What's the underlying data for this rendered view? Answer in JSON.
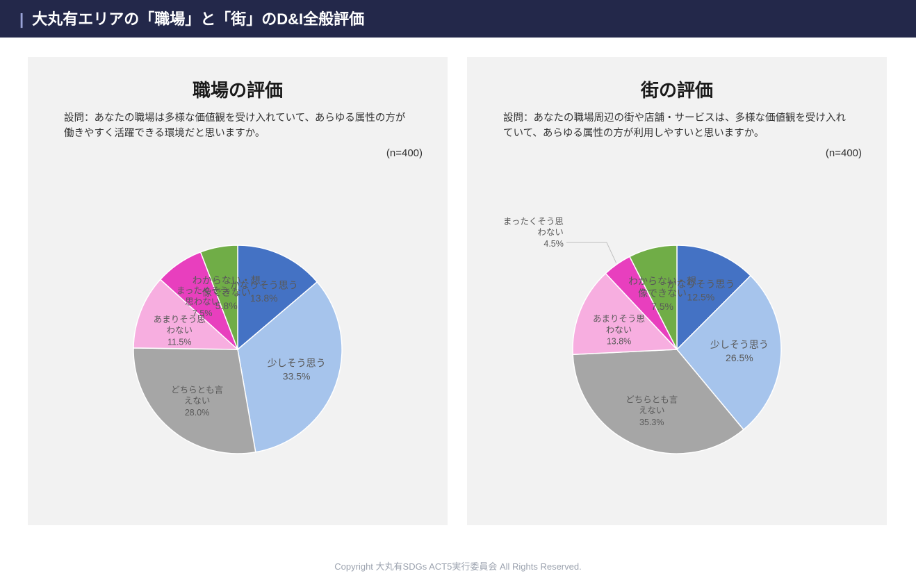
{
  "page": {
    "title": "大丸有エリアの「職場」と「街」のD&I全般評価",
    "footer": "Copyright 大丸有SDGs ACT5実行委員会 All Rights Reserved.",
    "titlebar_bg": "#23284a",
    "panel_bg": "#f2f2f2",
    "page_bg": "#ffffff"
  },
  "charts": [
    {
      "title": "職場の評価",
      "question": "設問：あなたの職場は多様な価値観を受け入れていて、あらゆる属性の方が働きやすく活躍できる環境だと思いますか。",
      "n_label": "(n=400)",
      "type": "pie",
      "title_fontsize": 26,
      "question_fontsize": 14.5,
      "label_fontsize": 14,
      "start_angle_deg": 0,
      "slices": [
        {
          "label": "かなりそう思う",
          "value": 13.8,
          "pct_label": "13.8%",
          "color": "#4472c4",
          "label_small": false
        },
        {
          "label": "少しそう思う",
          "value": 33.5,
          "pct_label": "33.5%",
          "color": "#a6c4ec",
          "label_small": false
        },
        {
          "label": "どちらとも言えない",
          "value": 28.0,
          "pct_label": "28.0%",
          "color": "#a6a6a6",
          "label_small": true
        },
        {
          "label": "あまりそう思わない",
          "value": 11.5,
          "pct_label": "11.5%",
          "color": "#f7aee0",
          "label_small": true
        },
        {
          "label": "まったくそう思わない",
          "value": 7.5,
          "pct_label": "7.5%",
          "color": "#e83fbe",
          "label_small": true
        },
        {
          "label": "わからない・想像できない",
          "value": 5.8,
          "pct_label": "5.8%",
          "color": "#70ad47",
          "label_small": false
        }
      ]
    },
    {
      "title": "街の評価",
      "question": "設問：あなたの職場周辺の街や店舗・サービスは、多様な価値観を受け入れていて、あらゆる属性の方が利用しやすいと思いますか。",
      "n_label": "(n=400)",
      "type": "pie",
      "title_fontsize": 26,
      "question_fontsize": 14.5,
      "label_fontsize": 14,
      "start_angle_deg": 0,
      "slices": [
        {
          "label": "かなりそう思う",
          "value": 12.5,
          "pct_label": "12.5%",
          "color": "#4472c4",
          "label_small": false
        },
        {
          "label": "少しそう思う",
          "value": 26.5,
          "pct_label": "26.5%",
          "color": "#a6c4ec",
          "label_small": false
        },
        {
          "label": "どちらとも言えない",
          "value": 35.3,
          "pct_label": "35.3%",
          "color": "#a6a6a6",
          "label_small": true
        },
        {
          "label": "あまりそう思わない",
          "value": 13.8,
          "pct_label": "13.8%",
          "color": "#f7aee0",
          "label_small": true
        },
        {
          "label": "まったくそう思わない",
          "value": 4.5,
          "pct_label": "4.5%",
          "color": "#e83fbe",
          "label_small": true
        },
        {
          "label": "わからない・想像できない",
          "value": 7.5,
          "pct_label": "7.5%",
          "color": "#70ad47",
          "label_small": false
        }
      ]
    }
  ]
}
